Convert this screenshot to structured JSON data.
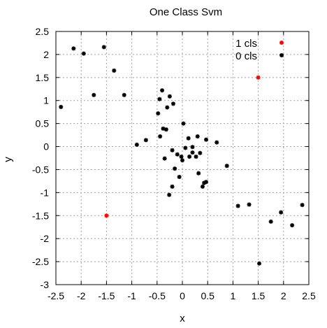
{
  "chart_data": {
    "type": "scatter",
    "title": "One Class Svm",
    "xlabel": "x",
    "ylabel": "y",
    "xlim": [
      -2.5,
      2.5
    ],
    "ylim": [
      -3,
      2.5
    ],
    "xticks": [
      -2.5,
      -2,
      -1.5,
      -1,
      -0.5,
      0,
      0.5,
      1,
      1.5,
      2,
      2.5
    ],
    "yticks": [
      -3,
      -2.5,
      -2,
      -1.5,
      -1,
      -0.5,
      0,
      0.5,
      1,
      1.5,
      2,
      2.5
    ],
    "xtick_labels": [
      "-2.5",
      "-2",
      "-1.5",
      "-1",
      "-0.5",
      "0",
      "0.5",
      "1",
      "1.5",
      "2",
      "2.5"
    ],
    "ytick_labels": [
      "-3",
      "-2.5",
      "-2",
      "-1.5",
      "-1",
      "-0.5",
      "0",
      "0.5",
      "1",
      "1.5",
      "2",
      "2.5"
    ],
    "grid": true,
    "legend_position": "top-right",
    "series": [
      {
        "name": "1 cls",
        "color": "#ff0000",
        "points": [
          [
            1.5,
            1.5
          ],
          [
            -1.5,
            -1.5
          ]
        ]
      },
      {
        "name": "0 cls",
        "color": "#000000",
        "points": [
          [
            -2.15,
            2.13
          ],
          [
            -1.95,
            2.02
          ],
          [
            -1.55,
            2.16
          ],
          [
            -1.35,
            1.65
          ],
          [
            -1.75,
            1.12
          ],
          [
            -1.15,
            1.12
          ],
          [
            -2.4,
            0.86
          ],
          [
            -0.45,
            1.03
          ],
          [
            -0.4,
            1.22
          ],
          [
            -0.25,
            1.09
          ],
          [
            -0.3,
            0.85
          ],
          [
            -0.18,
            0.93
          ],
          [
            -0.48,
            0.72
          ],
          [
            -0.38,
            0.39
          ],
          [
            -0.32,
            0.37
          ],
          [
            -0.44,
            0.22
          ],
          [
            -0.72,
            0.14
          ],
          [
            -0.9,
            0.04
          ],
          [
            -0.35,
            -0.26
          ],
          [
            -0.2,
            -0.08
          ],
          [
            0.02,
            0.5
          ],
          [
            0.12,
            0.18
          ],
          [
            0.06,
            -0.03
          ],
          [
            0.2,
            -0.01
          ],
          [
            0.3,
            0.22
          ],
          [
            0.47,
            0.15
          ],
          [
            0.68,
            0.09
          ],
          [
            -0.1,
            -0.17
          ],
          [
            -0.02,
            -0.22
          ],
          [
            0.0,
            -0.3
          ],
          [
            0.14,
            -0.22
          ],
          [
            0.2,
            -0.13
          ],
          [
            0.27,
            -0.22
          ],
          [
            0.35,
            -0.14
          ],
          [
            -0.15,
            -0.48
          ],
          [
            0.32,
            -0.58
          ],
          [
            -0.06,
            -0.66
          ],
          [
            0.47,
            -0.77
          ],
          [
            0.43,
            -0.79
          ],
          [
            0.4,
            -0.87
          ],
          [
            -0.2,
            -0.87
          ],
          [
            -0.26,
            -1.05
          ],
          [
            0.88,
            -0.42
          ],
          [
            1.1,
            -1.29
          ],
          [
            1.32,
            -1.26
          ],
          [
            1.95,
            -1.43
          ],
          [
            1.75,
            -1.63
          ],
          [
            2.17,
            -1.71
          ],
          [
            2.37,
            -1.27
          ],
          [
            1.52,
            -2.54
          ]
        ]
      }
    ]
  }
}
